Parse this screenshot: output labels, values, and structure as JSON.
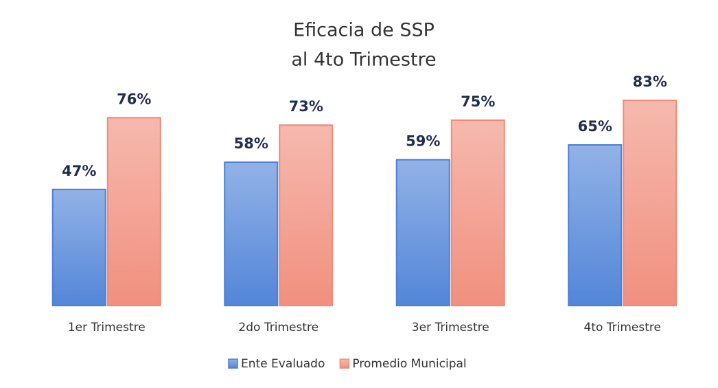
{
  "chart_data": {
    "type": "bar",
    "title": [
      "Eficacia de SSP",
      "al 4to Trimestre"
    ],
    "categories": [
      "1er Trimestre",
      "2do Trimestre",
      "3er Trimestre",
      "4to Trimestre"
    ],
    "series": [
      {
        "name": "Ente Evaluado",
        "color": "#4a7fd6",
        "values": [
          47,
          58,
          59,
          65
        ],
        "value_labels": [
          "47%",
          "58%",
          "59%",
          "65%"
        ]
      },
      {
        "name": "Promedio Municipal",
        "color": "#f08a78",
        "values": [
          76,
          73,
          75,
          83
        ],
        "value_labels": [
          "76%",
          "73%",
          "75%",
          "83%"
        ]
      }
    ],
    "legend": "bottom"
  }
}
